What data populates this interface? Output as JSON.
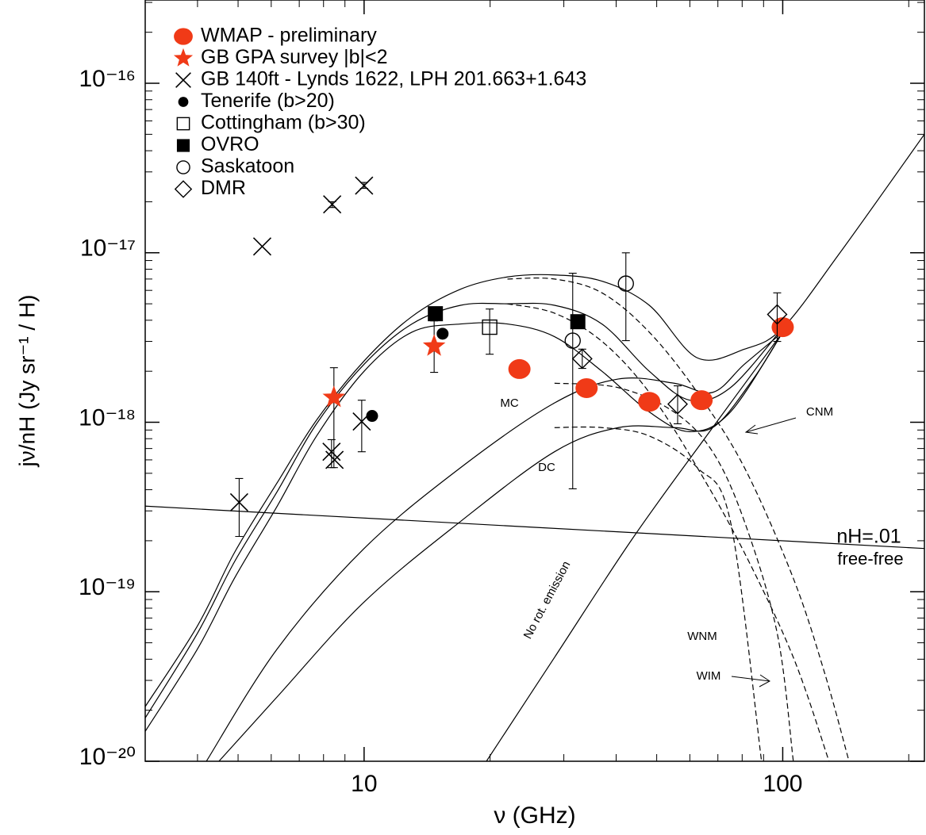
{
  "chart_data": {
    "type": "scatter",
    "xlabel": "ν (GHz)",
    "ylabel": "jν/nH (Jy sr⁻¹ / H)",
    "xscale": "log",
    "yscale": "log",
    "xlim": [
      3,
      218
    ],
    "ylim": [
      1e-20,
      3.1e-16
    ],
    "xticks": [
      10,
      100
    ],
    "yticks": [
      {
        "value": 1e-20,
        "label": "10⁻²⁰"
      },
      {
        "value": 1e-19,
        "label": "10⁻¹⁹"
      },
      {
        "value": 1e-18,
        "label": "10⁻¹⁸"
      },
      {
        "value": 1e-17,
        "label": "10⁻¹⁷"
      },
      {
        "value": 1e-16,
        "label": "10⁻¹⁶"
      }
    ],
    "legend": "upper left",
    "series": [
      {
        "name": "WMAP - preliminary",
        "marker": "ellipse",
        "color": "#f03a17",
        "x": [
          23.5,
          34,
          48,
          64,
          100
        ],
        "values": [
          2.06e-18,
          1.59e-18,
          1.32e-18,
          1.35e-18,
          3.64e-18
        ]
      },
      {
        "name": "GB GPA survey |b|<2",
        "marker": "star",
        "color": "#f03a17",
        "x": [
          8.47,
          14.7
        ],
        "values": [
          1.4e-18,
          2.81e-18
        ],
        "lower": [
          5.4e-19,
          1.97e-18
        ],
        "upper": [
          2.1e-18,
          3.96e-18
        ]
      },
      {
        "name": "GB 140ft - Lynds 1622, LPH 201.663+1.643",
        "marker": "cross",
        "color": "#000000",
        "x": [
          5.03,
          8.36,
          8.5,
          9.87,
          8.39,
          10.0,
          5.71
        ],
        "values": [
          3.37e-19,
          6.7e-19,
          6e-19,
          1.01e-18,
          1.93e-17,
          2.49e-17,
          1.09e-17
        ],
        "lower": [
          2.12e-19,
          5.4e-19,
          null,
          6.7e-19,
          1.85e-17,
          2.4e-17,
          null
        ],
        "upper": [
          4.66e-19,
          7.9e-19,
          null,
          1.35e-18,
          2e-17,
          2.6e-17,
          null
        ]
      },
      {
        "name": "Tenerife (b>20)",
        "marker": "dot",
        "color": "#000000",
        "x": [
          10.45,
          15.4
        ],
        "values": [
          1.09e-18,
          3.33e-18
        ]
      },
      {
        "name": "Cottingham (b>30)",
        "marker": "square-open",
        "color": "#000000",
        "x": [
          19.95
        ],
        "values": [
          3.64e-18
        ],
        "lower": [
          2.52e-18
        ],
        "upper": [
          4.66e-18
        ]
      },
      {
        "name": "OVRO",
        "marker": "square",
        "color": "#000000",
        "x": [
          14.8,
          32.4
        ],
        "values": [
          4.37e-18,
          3.92e-18
        ]
      },
      {
        "name": "Saskatoon",
        "marker": "circle-open",
        "color": "#000000",
        "x": [
          42.2,
          31.5
        ],
        "values": [
          6.58e-18,
          3.03e-18
        ],
        "lower": [
          3.03e-18,
          4.05e-19
        ],
        "upper": [
          1e-17,
          7.57e-18
        ]
      },
      {
        "name": "DMR",
        "marker": "diamond-open",
        "color": "#000000",
        "x": [
          33.2,
          56.1,
          97
        ],
        "values": [
          2.37e-18,
          1.28e-18,
          4.33e-18
        ],
        "lower": [
          2.08e-18,
          9.8e-19,
          3e-18
        ],
        "upper": [
          2.7e-18,
          1.64e-18,
          5.8e-18
        ]
      }
    ],
    "curves": [
      {
        "dash": false,
        "x": [
          3,
          4,
          4.9,
          6.2,
          7.7,
          10,
          13,
          17,
          22,
          28.5,
          37,
          48,
          62.5,
          81,
          100,
          137,
          218
        ],
        "y": [
          2.1e-20,
          6.3e-20,
          1.7e-19,
          4.4e-19,
          1.03e-18,
          2.3e-18,
          4.2e-18,
          6.1e-18,
          7.2e-18,
          7.4e-18,
          6.8e-18,
          4.9e-18,
          2.4e-18,
          2.7e-18,
          3.6e-18,
          1e-17,
          5e-17
        ]
      },
      {
        "dash": false,
        "x": [
          3,
          4,
          4.9,
          6.2,
          7.7,
          10,
          13,
          17,
          22,
          28.5,
          37,
          48,
          60,
          75,
          100
        ],
        "y": [
          1.8e-20,
          5.7e-20,
          1.5e-19,
          3.9e-19,
          9.8e-19,
          2.2e-18,
          3.8e-18,
          4.9e-18,
          5e-18,
          4.9e-18,
          3.8e-18,
          2e-18,
          1.35e-18,
          1.6e-18,
          3.6e-18
        ]
      },
      {
        "dash": false,
        "x": [
          3,
          4,
          4.9,
          6.2,
          7.7,
          10,
          13,
          17,
          22,
          28.5,
          37,
          48,
          60,
          75,
          100
        ],
        "y": [
          1.5e-20,
          4.6e-20,
          1.2e-19,
          3.2e-19,
          8.3e-19,
          2e-18,
          3.4e-18,
          3.8e-18,
          3.8e-18,
          3.2e-18,
          2e-18,
          1.15e-18,
          8.8e-19,
          1.15e-18,
          3.4e-18
        ]
      },
      {
        "dash": false,
        "x": [
          4.2,
          6.2,
          10,
          17,
          28.5,
          40.5,
          55,
          68,
          81,
          100
        ],
        "y": [
          1e-20,
          4.6e-20,
          1.8e-19,
          5.4e-19,
          1.3e-18,
          1.8e-18,
          1.7e-18,
          1.5e-18,
          2.2e-18,
          3.4e-18
        ]
      },
      {
        "dash": false,
        "x": [
          4.5,
          6.2,
          10,
          17,
          28.5,
          40.5,
          55,
          68,
          85,
          100
        ],
        "y": [
          1e-20,
          2.4e-20,
          8.7e-20,
          2.6e-19,
          6.7e-19,
          9.3e-19,
          9.3e-19,
          9.3e-19,
          1.8e-18,
          3.4e-18
        ]
      },
      {
        "dash": true,
        "x": [
          22,
          28.5,
          37,
          48,
          62.5,
          81,
          106,
          126,
          144
        ],
        "y": [
          7e-18,
          7e-18,
          5.8e-18,
          3.4e-18,
          1.5e-18,
          5.4e-19,
          1.2e-19,
          3.3e-20,
          1e-20
        ]
      },
      {
        "dash": true,
        "x": [
          22,
          28.5,
          37,
          48,
          62.5,
          81,
          106,
          129
        ],
        "y": [
          5e-18,
          4.4e-18,
          3e-18,
          1.5e-18,
          5.4e-19,
          1.7e-19,
          4.1e-20,
          1e-20
        ]
      },
      {
        "dash": true,
        "x": [
          28.5,
          40.5,
          55,
          68,
          81,
          97,
          106
        ],
        "y": [
          1.7e-18,
          1.6e-18,
          1.15e-18,
          6.7e-19,
          2.6e-19,
          5.7e-20,
          1e-20
        ]
      },
      {
        "dash": true,
        "x": [
          28.5,
          37,
          48,
          62.5,
          75,
          89
        ],
        "y": [
          9.3e-19,
          9.3e-19,
          8.3e-19,
          5.4e-19,
          2.6e-19,
          1e-20
        ]
      },
      {
        "dash": false,
        "x": [
          19.6,
          28.5,
          44,
          68,
          100
        ],
        "y": [
          1e-20,
          4.1e-20,
          2.1e-19,
          9.3e-19,
          3.4e-18
        ]
      },
      {
        "dash": false,
        "x": [
          3,
          218
        ],
        "y": [
          3.2e-19,
          1.8e-19
        ]
      }
    ],
    "annotations": [
      "MC",
      "DC",
      "CNM",
      "WNM",
      "WIM",
      "No rot. emission",
      "nH=.01",
      "free-free"
    ]
  }
}
